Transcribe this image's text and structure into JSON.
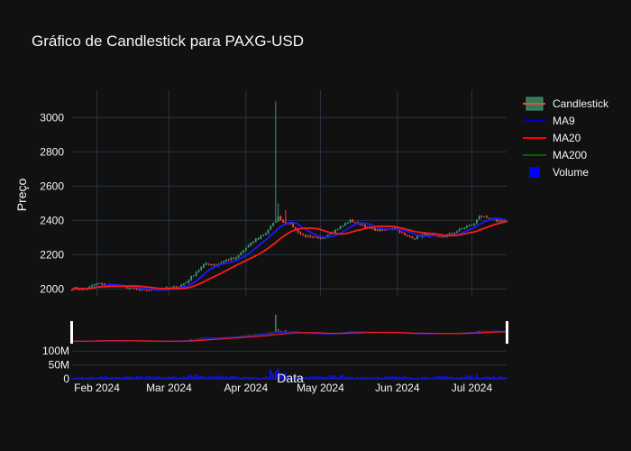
{
  "chart_data": {
    "type": "candlestick",
    "title": "Gráfico de Candlestick para PAXG-USD",
    "xlabel": "Data",
    "ylabel": "Preço",
    "ylim": [
      1960,
      3160
    ],
    "yticks": [
      2000,
      2200,
      2400,
      2600,
      2800,
      3000
    ],
    "xticks": [
      "Feb 2024",
      "Mar 2024",
      "Apr 2024",
      "May 2024",
      "Jun 2024",
      "Jul 2024"
    ],
    "legend_position": "top-right",
    "grid": true,
    "legend": [
      {
        "name": "Candlestick",
        "color": "#3d9970"
      },
      {
        "name": "MA9",
        "color": "#0000cc"
      },
      {
        "name": "MA20",
        "color": "#ff0000"
      },
      {
        "name": "MA200",
        "color": "#006400"
      },
      {
        "name": "Volume",
        "color": "#0000ff"
      }
    ],
    "colors": {
      "up": "#3d9970",
      "down": "#ff4136",
      "ma9": "#1a1aff",
      "ma20": "#ff1a1a",
      "volume": "#1010ff",
      "grid": "#283442"
    },
    "volume_axis": {
      "ticks": [
        "0",
        "50M",
        "100M"
      ],
      "tick_values": [
        0,
        50,
        100
      ],
      "max": 130
    },
    "close_anchors": [
      {
        "d": 0,
        "v": 2005
      },
      {
        "d": 5,
        "v": 2000
      },
      {
        "d": 10,
        "v": 2030
      },
      {
        "d": 16,
        "v": 2020
      },
      {
        "d": 22,
        "v": 2010
      },
      {
        "d": 28,
        "v": 1990
      },
      {
        "d": 35,
        "v": 2000
      },
      {
        "d": 42,
        "v": 2010
      },
      {
        "d": 46,
        "v": 2040
      },
      {
        "d": 50,
        "v": 2100
      },
      {
        "d": 54,
        "v": 2150
      },
      {
        "d": 58,
        "v": 2140
      },
      {
        "d": 62,
        "v": 2170
      },
      {
        "d": 66,
        "v": 2180
      },
      {
        "d": 70,
        "v": 2240
      },
      {
        "d": 74,
        "v": 2290
      },
      {
        "d": 78,
        "v": 2330
      },
      {
        "d": 81,
        "v": 2380
      },
      {
        "d": 83,
        "v": 2420
      },
      {
        "d": 85,
        "v": 2390
      },
      {
        "d": 88,
        "v": 2380
      },
      {
        "d": 92,
        "v": 2320
      },
      {
        "d": 96,
        "v": 2300
      },
      {
        "d": 100,
        "v": 2290
      },
      {
        "d": 104,
        "v": 2330
      },
      {
        "d": 108,
        "v": 2360
      },
      {
        "d": 112,
        "v": 2400
      },
      {
        "d": 116,
        "v": 2380
      },
      {
        "d": 120,
        "v": 2350
      },
      {
        "d": 125,
        "v": 2340
      },
      {
        "d": 130,
        "v": 2360
      },
      {
        "d": 134,
        "v": 2310
      },
      {
        "d": 138,
        "v": 2300
      },
      {
        "d": 142,
        "v": 2320
      },
      {
        "d": 148,
        "v": 2300
      },
      {
        "d": 154,
        "v": 2330
      },
      {
        "d": 158,
        "v": 2360
      },
      {
        "d": 162,
        "v": 2380
      },
      {
        "d": 164,
        "v": 2430
      },
      {
        "d": 167,
        "v": 2410
      },
      {
        "d": 171,
        "v": 2400
      },
      {
        "d": 175,
        "v": 2395
      }
    ],
    "spikes": [
      {
        "d": 82,
        "high": 3095
      },
      {
        "d": 83,
        "high": 2500
      },
      {
        "d": 86,
        "high": 2460
      }
    ],
    "day_range": [
      0,
      175
    ]
  }
}
